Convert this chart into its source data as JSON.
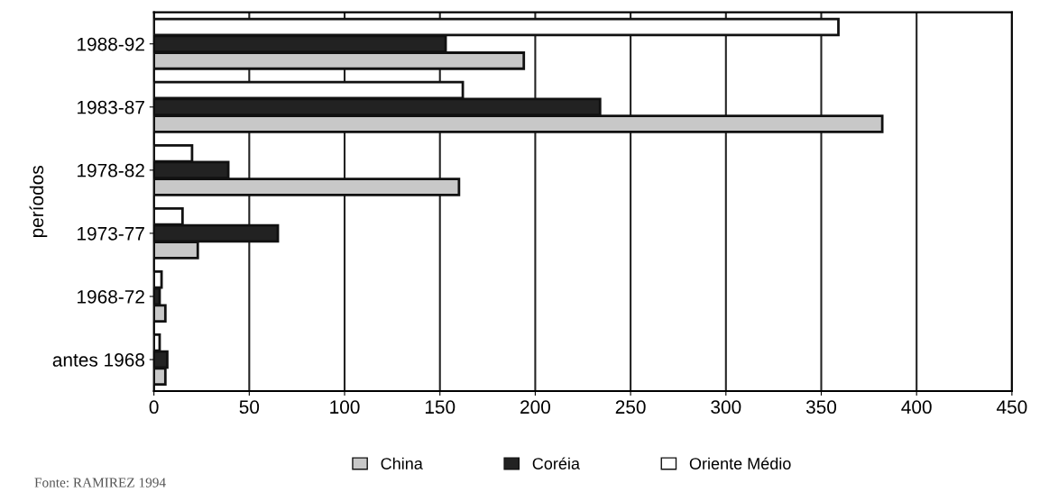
{
  "chart_data": {
    "type": "bar",
    "orientation": "horizontal",
    "ylabel": "períodos",
    "categories": [
      "1988-92",
      "1983-87",
      "1978-82",
      "1973-77",
      "1968-72",
      "antes 1968"
    ],
    "series": [
      {
        "name": "China",
        "color": "#c8c8c8",
        "values": [
          194,
          382,
          160,
          23,
          6,
          6
        ]
      },
      {
        "name": "Coréia",
        "color": "#222222",
        "values": [
          153,
          234,
          39,
          65,
          3,
          7
        ]
      },
      {
        "name": "Oriente Médio",
        "color": "#ffffff",
        "values": [
          359,
          162,
          20,
          15,
          4,
          3
        ]
      }
    ],
    "xlim": [
      0,
      450
    ],
    "xticks": [
      0,
      50,
      100,
      150,
      200,
      250,
      300,
      350,
      400,
      450
    ],
    "grid": "x",
    "legend": "bottom",
    "annotations": [
      "Fonte: RAMIREZ 1994"
    ]
  }
}
